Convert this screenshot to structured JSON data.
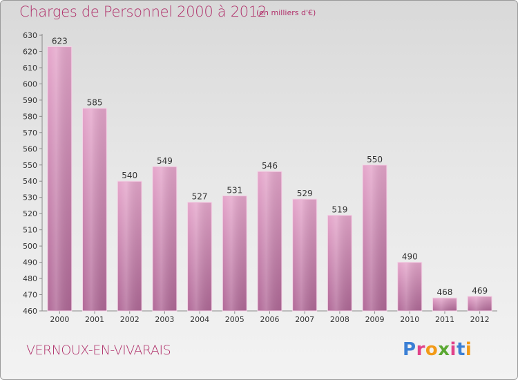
{
  "header": {
    "title": "Charges de Personnel 2000 à 2012",
    "subtitle": "(en milliers d'€)"
  },
  "footer": {
    "commune": "VERNOUX-EN-VIVARAIS",
    "brand": "Proxiti",
    "brand_colors": [
      "#3a7fd5",
      "#e0428a",
      "#f29a17",
      "#5aa832",
      "#e0428a",
      "#3a7fd5",
      "#f29a17"
    ]
  },
  "colors": {
    "bar_top": "#e5a6cb",
    "bar_bottom": "#b16a98",
    "text": "#b0306a"
  },
  "chart_data": {
    "type": "bar",
    "categories": [
      "2000",
      "2001",
      "2002",
      "2003",
      "2004",
      "2005",
      "2006",
      "2007",
      "2008",
      "2009",
      "2010",
      "2011",
      "2012"
    ],
    "values": [
      623,
      585,
      540,
      549,
      527,
      531,
      546,
      529,
      519,
      550,
      490,
      468,
      469
    ],
    "ylim": [
      460,
      630
    ],
    "yticks": [
      460,
      470,
      480,
      490,
      500,
      510,
      520,
      530,
      540,
      550,
      560,
      570,
      580,
      590,
      600,
      610,
      620,
      630
    ],
    "grid": false,
    "legend": "none",
    "data_labels": true
  }
}
